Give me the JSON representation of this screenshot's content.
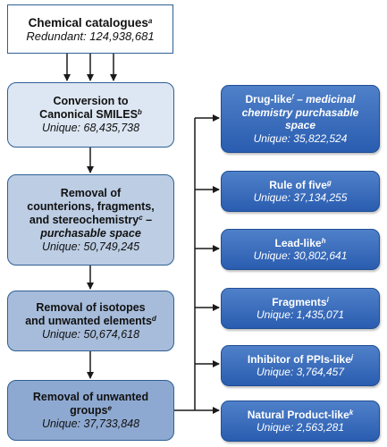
{
  "catalogues": {
    "title": "Chemical catalogues",
    "sup": "a",
    "count": "Redundant: 124,938,681"
  },
  "left_steps": [
    {
      "lines": [
        "Conversion to",
        "Canonical SMILES"
      ],
      "sup": "b",
      "count": "Unique: 68,435,738"
    },
    {
      "lines": [
        "Removal of",
        "counterions, fragments,",
        "and stereochemistry"
      ],
      "sup": "c",
      "suffix": " –",
      "italic": "purchasable space",
      "count": "Unique: 50,749,245"
    },
    {
      "lines": [
        "Removal of isotopes",
        "and unwanted elements"
      ],
      "sup": "d",
      "count": "Unique: 50,674,618"
    },
    {
      "lines": [
        "Removal of unwanted",
        "groups"
      ],
      "sup": "e",
      "count": "Unique: 37,733,848"
    }
  ],
  "right_boxes": [
    {
      "title": "Drug-like",
      "sup": "f",
      "suffix": " –",
      "italic_lines": [
        "medicinal",
        "chemistry purchasable",
        "space"
      ],
      "count": "Unique: 35,822,524"
    },
    {
      "title": "Rule of five",
      "sup": "g",
      "count": "Unique: 37,134,255"
    },
    {
      "title": "Lead-like",
      "sup": "h",
      "count": "Unique: 30,802,641"
    },
    {
      "title": "Fragments",
      "sup": "i",
      "count": "Unique: 1,435,071"
    },
    {
      "title": "Inhibitor of PPIs-like",
      "sup": "j",
      "count": "Unique: 3,764,457"
    },
    {
      "title": "Natural Product-like",
      "sup": "k",
      "count": "Unique: 2,563,281"
    }
  ],
  "colors": {
    "catalogues_fill": "#ffffff",
    "step_fills": [
      "#dde7f3",
      "#bccde4",
      "#a6bcda",
      "#8ea9d1"
    ],
    "right_fill": "#3a6dbd",
    "border": "#2f5f95",
    "arrow": "#1a1a1a"
  }
}
